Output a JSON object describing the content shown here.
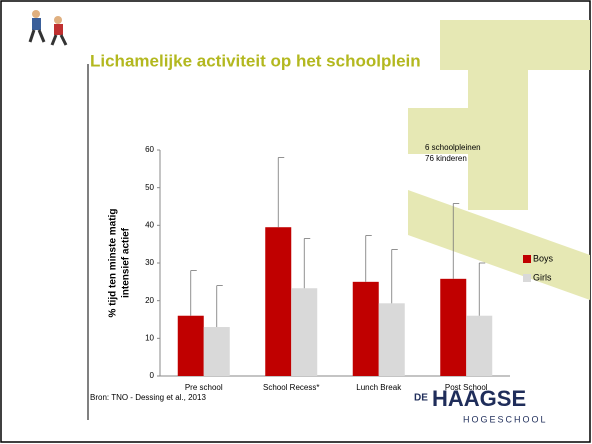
{
  "chart_data": {
    "type": "bar",
    "title": "Lichamelijke activiteit op het schoolplein",
    "y_label": [
      "% tijd ten minste matig",
      "intensief actief"
    ],
    "categories": [
      "Pre school",
      "School Recess*",
      "Lunch Break",
      "Post School"
    ],
    "series": [
      {
        "name": "Boys",
        "color": "#c00000",
        "values": [
          16,
          39.5,
          25,
          25.8
        ],
        "errors": [
          12,
          18.5,
          12.3,
          20
        ]
      },
      {
        "name": "Girls",
        "color": "#d9d9d9",
        "values": [
          13,
          23.3,
          19.3,
          16
        ],
        "errors": [
          11,
          13.2,
          14.3,
          14
        ]
      }
    ],
    "ylim": [
      0,
      60
    ],
    "yticks": [
      0,
      10,
      20,
      30,
      40,
      50,
      60
    ],
    "grid": false,
    "legend": "right",
    "annotations": [
      "6 schoolpleinen",
      "76 kinderen"
    ]
  },
  "source": "Bron: TNO - Dessing et al., 2013",
  "logo": {
    "prefix": "DE",
    "name": "HAAGSE",
    "sub": "HOGESCHOOL"
  }
}
